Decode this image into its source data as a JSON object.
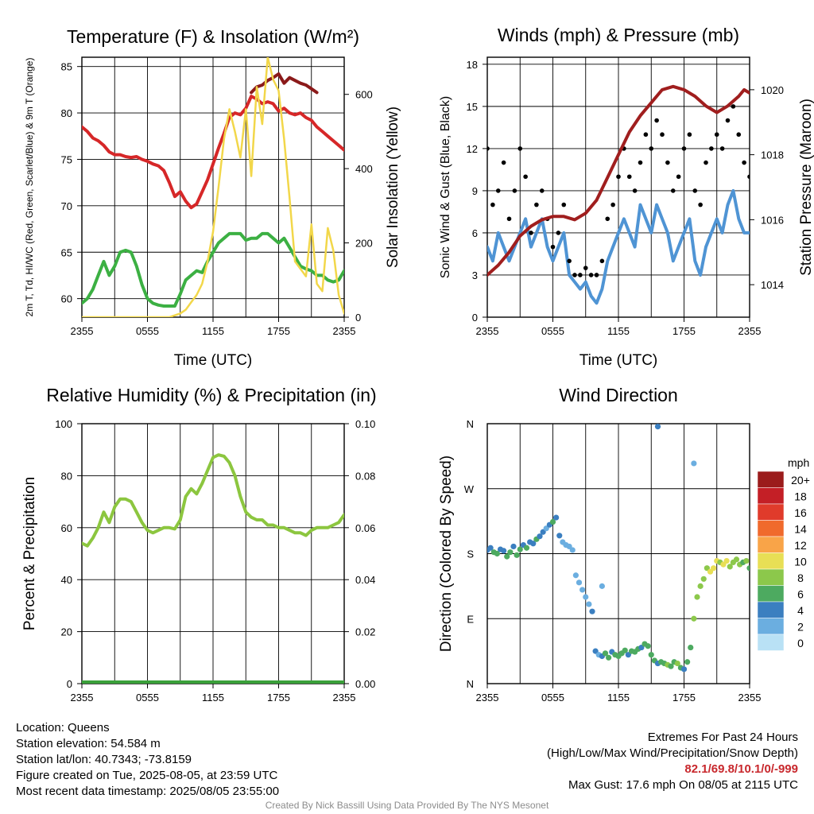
{
  "chart_data": [
    {
      "type": "line",
      "title": "Temperature (F) & Insolation (W/m²)",
      "xlabel": "Time (UTC)",
      "ylabel": "2m T, Td, HI/WC (Red, Green, Scarlet/Blue) & 9m T (Orange)",
      "ylabel2": "Solar Insolation (Yellow)",
      "x_ticks": [
        "2355",
        "0555",
        "1155",
        "1755",
        "2355"
      ],
      "y_ticks": [
        60,
        65,
        70,
        75,
        80,
        85
      ],
      "y2_ticks": [
        0,
        200,
        400,
        600
      ],
      "ylim": [
        58,
        86
      ],
      "y2lim": [
        0,
        700
      ],
      "grid": true,
      "series": [
        {
          "color": "#d62728",
          "axis": "left",
          "x": [
            0,
            0.5,
            1,
            1.5,
            2,
            2.5,
            3,
            3.5,
            4,
            4.5,
            5,
            5.5,
            6,
            6.5,
            7,
            7.5,
            8,
            8.5,
            9,
            9.5,
            10,
            10.5,
            11,
            11.5,
            12,
            12.5,
            13,
            13.5,
            14,
            14.5,
            15,
            15.5,
            16,
            16.5,
            17,
            17.5,
            18,
            18.5,
            19,
            19.5,
            20,
            20.5,
            21,
            21.5,
            22,
            22.5,
            23,
            23.5,
            24
          ],
          "values": [
            78.5,
            78,
            77.3,
            77,
            76.5,
            75.8,
            75.5,
            75.5,
            75.3,
            75.2,
            75.3,
            75,
            74.8,
            74.5,
            74.3,
            73.8,
            72.5,
            71,
            71.5,
            70.5,
            69.8,
            70.2,
            71.5,
            72.8,
            74.5,
            76.2,
            77.8,
            79.5,
            80,
            79.8,
            80.5,
            81.8,
            81.5,
            81,
            81.2,
            81,
            80.2,
            80.5,
            80,
            79.8,
            80,
            79.5,
            79.2,
            78.5,
            78,
            77.5,
            77,
            76.5,
            76
          ]
        },
        {
          "color": "#8b1a1a",
          "axis": "left",
          "x": [
            15.5,
            16,
            16.5,
            17,
            17.5,
            18,
            18.5,
            19,
            19.5,
            20,
            20.5,
            21,
            21.5
          ],
          "values": [
            82.2,
            82.8,
            83,
            83.5,
            83.8,
            84.2,
            83.2,
            83.8,
            83.5,
            83.2,
            83,
            82.6,
            82.2
          ]
        },
        {
          "color": "#3cb043",
          "axis": "left",
          "x": [
            0,
            0.5,
            1,
            1.5,
            2,
            2.5,
            3,
            3.5,
            4,
            4.5,
            5,
            5.5,
            6,
            6.5,
            7,
            7.5,
            8,
            8.5,
            9,
            9.5,
            10,
            10.5,
            11,
            11.5,
            12,
            12.5,
            13,
            13.5,
            14,
            14.5,
            15,
            15.5,
            16,
            16.5,
            17,
            17.5,
            18,
            18.5,
            19,
            19.5,
            20,
            20.5,
            21,
            21.5,
            22,
            22.5,
            23,
            23.5,
            24
          ],
          "values": [
            59.5,
            60,
            61,
            62.5,
            64,
            62.5,
            63.5,
            65,
            65.2,
            65,
            63.5,
            61.5,
            60,
            59.5,
            59.3,
            59.2,
            59.2,
            59.2,
            60.5,
            62,
            62.5,
            63,
            62.8,
            64,
            65,
            66,
            66.5,
            67,
            67,
            67,
            66.3,
            66.5,
            66.5,
            67,
            67,
            66.5,
            66,
            66.5,
            65.5,
            64.5,
            63.5,
            63.2,
            63,
            62.5,
            62.5,
            62,
            61.8,
            62,
            63
          ]
        },
        {
          "color": "#f2d74a",
          "axis": "right",
          "x": [
            0,
            1,
            2,
            3,
            4,
            5,
            6,
            7,
            8,
            8.5,
            9,
            9.5,
            10,
            10.5,
            11,
            11.5,
            12,
            12.5,
            13,
            13.5,
            14,
            14.5,
            15,
            15.5,
            16,
            16.5,
            17,
            17.5,
            18,
            18.5,
            19,
            19.5,
            20,
            20.5,
            21,
            21.5,
            22,
            22.5,
            23,
            23.5,
            24
          ],
          "values": [
            0,
            0,
            0,
            0,
            0,
            0,
            0,
            0,
            0,
            5,
            10,
            20,
            40,
            60,
            90,
            150,
            230,
            350,
            480,
            560,
            500,
            430,
            560,
            380,
            620,
            520,
            700,
            640,
            610,
            480,
            320,
            150,
            130,
            110,
            250,
            90,
            70,
            240,
            180,
            60,
            10
          ]
        }
      ]
    },
    {
      "type": "line",
      "title": "Winds (mph) & Pressure (mb)",
      "xlabel": "Time (UTC)",
      "ylabel": "Sonic Wind & Gust (Blue, Black)",
      "ylabel2": "Station Pressure (Maroon)",
      "x_ticks": [
        "2355",
        "0555",
        "1155",
        "1755",
        "2355"
      ],
      "y_ticks": [
        0,
        3,
        6,
        9,
        12,
        15,
        18
      ],
      "y2_ticks": [
        1014,
        1016,
        1018,
        1020
      ],
      "ylim": [
        0,
        18.5
      ],
      "y2lim": [
        1013,
        1021
      ],
      "grid": true,
      "series": [
        {
          "color": "#4f94d4",
          "axis": "left",
          "x": [
            0,
            0.5,
            1,
            1.5,
            2,
            2.5,
            3,
            3.5,
            4,
            4.5,
            5,
            5.5,
            6,
            6.5,
            7,
            7.5,
            8,
            8.5,
            9,
            9.5,
            10,
            10.5,
            11,
            11.5,
            12,
            12.5,
            13,
            13.5,
            14,
            14.5,
            15,
            15.5,
            16,
            16.5,
            17,
            17.5,
            18,
            18.5,
            19,
            19.5,
            20,
            20.5,
            21,
            21.5,
            22,
            22.5,
            23,
            23.5,
            24
          ],
          "values": [
            5,
            4,
            6,
            5,
            4,
            5,
            6,
            7,
            5,
            6,
            7,
            5,
            4,
            5,
            6,
            3,
            2.5,
            2,
            2.5,
            1.5,
            1,
            2,
            4,
            5,
            6,
            7,
            6,
            5,
            8,
            7,
            6,
            8,
            7,
            6,
            4,
            5,
            6,
            7,
            4,
            3,
            5,
            6,
            7,
            6,
            8,
            9,
            7,
            6,
            6
          ]
        },
        {
          "color": "#000000",
          "axis": "left",
          "style": "dots",
          "x": [
            0,
            0.5,
            1,
            1.5,
            2,
            2.5,
            3,
            3.5,
            4,
            4.5,
            5,
            5.5,
            6,
            6.5,
            7,
            7.5,
            8,
            8.5,
            9,
            9.5,
            10,
            10.5,
            11,
            11.5,
            12,
            12.5,
            13,
            13.5,
            14,
            14.5,
            15,
            15.5,
            16,
            16.5,
            17,
            17.5,
            18,
            18.5,
            19,
            19.5,
            20,
            20.5,
            21,
            21.5,
            22,
            22.5,
            23,
            23.5,
            24
          ],
          "values": [
            12,
            8,
            9,
            11,
            7,
            9,
            12,
            10,
            6,
            8,
            9,
            7,
            5,
            6,
            8,
            4,
            3,
            3,
            3.5,
            3,
            3,
            4,
            7,
            8,
            10,
            12,
            10,
            9,
            11,
            13,
            12,
            14,
            13,
            11,
            9,
            10,
            12,
            13,
            9,
            8,
            11,
            12,
            13,
            12,
            14,
            15,
            13,
            11,
            10
          ]
        },
        {
          "color": "#a01e1e",
          "axis": "right",
          "x": [
            0,
            1,
            2,
            3,
            4,
            5,
            6,
            7,
            8,
            9,
            10,
            11,
            12,
            13,
            14,
            15,
            16,
            17,
            18,
            19,
            20,
            21,
            22,
            23,
            23.5,
            24
          ],
          "values": [
            1014.3,
            1014.6,
            1015,
            1015.5,
            1015.8,
            1016,
            1016.1,
            1016.1,
            1016,
            1016.2,
            1016.6,
            1017.3,
            1018,
            1018.7,
            1019.2,
            1019.6,
            1020,
            1020.1,
            1020,
            1019.8,
            1019.5,
            1019.3,
            1019.5,
            1019.8,
            1020,
            1019.9
          ]
        }
      ]
    },
    {
      "type": "line",
      "title": "Relative Humidity (%) & Precipitation (in)",
      "xlabel": "",
      "ylabel": "Percent & Precipitation",
      "x_ticks": [
        "2355",
        "0555",
        "1155",
        "1755",
        "2355"
      ],
      "y_ticks": [
        0,
        20,
        40,
        60,
        80,
        100
      ],
      "y2_ticks": [
        "0.00",
        "0.02",
        "0.04",
        "0.06",
        "0.08",
        "0.10"
      ],
      "ylim": [
        0,
        100
      ],
      "y2lim": [
        0,
        0.1
      ],
      "grid": true,
      "series": [
        {
          "color": "#8cc63f",
          "axis": "left",
          "x": [
            0,
            0.5,
            1,
            1.5,
            2,
            2.5,
            3,
            3.5,
            4,
            4.5,
            5,
            5.5,
            6,
            6.5,
            7,
            7.5,
            8,
            8.5,
            9,
            9.5,
            10,
            10.5,
            11,
            11.5,
            12,
            12.5,
            13,
            13.5,
            14,
            14.5,
            15,
            15.5,
            16,
            16.5,
            17,
            17.5,
            18,
            18.5,
            19,
            19.5,
            20,
            20.5,
            21,
            21.5,
            22,
            22.5,
            23,
            23.5,
            24
          ],
          "values": [
            54,
            53,
            56,
            60,
            66,
            62,
            68,
            71,
            71,
            70,
            66,
            62,
            59,
            58,
            59,
            60,
            60,
            59.5,
            63,
            72,
            75,
            73,
            77,
            82,
            87,
            88,
            87.5,
            85,
            80,
            72,
            66,
            64,
            63,
            63,
            61,
            61,
            60,
            60,
            59,
            58,
            58,
            57,
            59,
            60,
            60,
            60,
            61,
            62,
            65
          ]
        },
        {
          "color": "#3aa03a",
          "axis": "right",
          "x": [
            0,
            24
          ],
          "values": [
            0,
            0
          ]
        }
      ]
    },
    {
      "type": "scatter",
      "title": "Wind Direction",
      "ylabel": "Direction (Colored By Speed)",
      "x_ticks": [
        "2355",
        "0555",
        "1155",
        "1755",
        "2355"
      ],
      "y_ticks": [
        "N",
        "E",
        "S",
        "W",
        "N"
      ],
      "ylim": [
        0,
        360
      ],
      "grid": true,
      "legend_title": "mph",
      "legend_labels": [
        "20+",
        "18",
        "16",
        "14",
        "12",
        "10",
        "8",
        "6",
        "4",
        "2",
        "0"
      ],
      "legend_colors": [
        "#9b1c1c",
        "#c41f26",
        "#e03b2b",
        "#f06a2c",
        "#f9a448",
        "#e8df55",
        "#8cc84b",
        "#4daa60",
        "#3b7fc0",
        "#6baee0",
        "#b9e1f5"
      ],
      "series": [
        {
          "name": "direction",
          "x": [
            0,
            0.3,
            0.6,
            0.9,
            1.2,
            1.5,
            1.8,
            2.1,
            2.4,
            2.7,
            3,
            3.3,
            3.6,
            3.9,
            4.2,
            4.5,
            4.8,
            5.1,
            5.4,
            5.7,
            6,
            6.3,
            6.6,
            6.9,
            7.2,
            7.5,
            7.8,
            8.1,
            8.4,
            8.7,
            9,
            9.3,
            9.6,
            9.9,
            10.2,
            10.5,
            10.8,
            11.1,
            11.4,
            11.7,
            12,
            12.3,
            12.6,
            12.9,
            13.2,
            13.5,
            13.8,
            14.1,
            14.4,
            14.7,
            15,
            15.3,
            15.6,
            15.9,
            16.2,
            16.5,
            16.8,
            17.1,
            17.4,
            17.7,
            18,
            18.3,
            18.6,
            18.9,
            19.2,
            19.5,
            19.8,
            20.1,
            20.4,
            20.7,
            21,
            21.3,
            21.6,
            21.9,
            22.2,
            22.5,
            22.8,
            23.1,
            23.4,
            23.7,
            24,
            15.6,
            18.9,
            10.5
          ],
          "values": [
            185,
            188,
            182,
            180,
            186,
            184,
            176,
            182,
            190,
            178,
            186,
            192,
            188,
            196,
            194,
            200,
            204,
            210,
            215,
            220,
            224,
            230,
            205,
            196,
            192,
            190,
            185,
            150,
            140,
            130,
            120,
            110,
            100,
            45,
            40,
            38,
            42,
            36,
            44,
            40,
            38,
            42,
            46,
            40,
            45,
            44,
            48,
            50,
            55,
            52,
            40,
            32,
            28,
            30,
            28,
            26,
            24,
            30,
            28,
            22,
            20,
            30,
            50,
            90,
            120,
            135,
            145,
            160,
            155,
            160,
            170,
            168,
            165,
            170,
            162,
            168,
            172,
            165,
            168,
            170,
            160,
            356,
            305,
            135
          ],
          "speeds": [
            3,
            4,
            5,
            6,
            4,
            3,
            5,
            6,
            4,
            5,
            6,
            4,
            5,
            4,
            3,
            5,
            4,
            3,
            2,
            4,
            5,
            4,
            3,
            2,
            2,
            1,
            2,
            1,
            2,
            1,
            1,
            2,
            3,
            4,
            2,
            3,
            5,
            6,
            4,
            5,
            6,
            5,
            6,
            4,
            5,
            6,
            5,
            4,
            5,
            6,
            6,
            5,
            4,
            6,
            5,
            7,
            6,
            5,
            7,
            6,
            4,
            5,
            6,
            7,
            7,
            8,
            7,
            8,
            9,
            10,
            9,
            8,
            10,
            9,
            8,
            7,
            8,
            7,
            6,
            7,
            6,
            3,
            1,
            1
          ]
        }
      ]
    }
  ],
  "info": {
    "location": "Location: Queens",
    "elevation": "Station elevation: 54.584 m",
    "latlon": "Station lat/lon: 40.7343; -73.8159",
    "created": "Figure created on Tue, 2025-08-05, at 23:59 UTC",
    "recent": "Most recent data timestamp: 2025/08/05 23:55:00"
  },
  "extremes": {
    "heading": "Extremes For Past 24 Hours",
    "fields": "(High/Low/Max Wind/Precipitation/Snow Depth)",
    "values": "82.1/69.8/10.1/0/-999",
    "gust": "Max Gust: 17.6 mph On 08/05 at 2115 UTC"
  },
  "credit": "Created By Nick Bassill Using Data Provided By The NYS Mesonet"
}
